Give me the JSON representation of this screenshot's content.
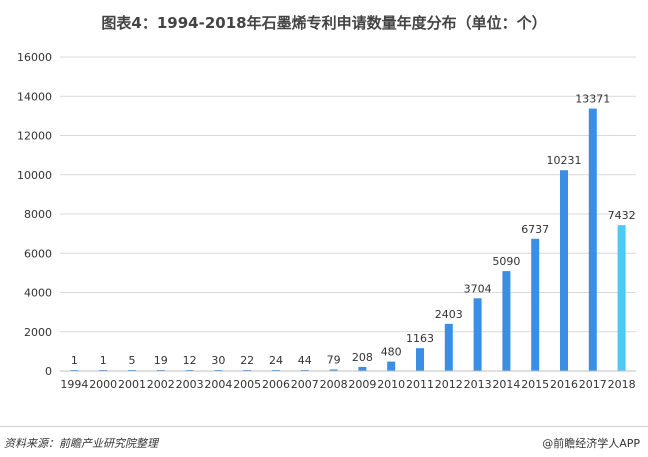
{
  "chart_data": {
    "type": "bar",
    "title": "图表4：1994-2018年石墨烯专利申请数量年度分布（单位：个）",
    "categories": [
      "1994",
      "2000",
      "2001",
      "2002",
      "2003",
      "2004",
      "2005",
      "2006",
      "2007",
      "2008",
      "2009",
      "2010",
      "2011",
      "2012",
      "2013",
      "2014",
      "2015",
      "2016",
      "2017",
      "2018"
    ],
    "values": [
      1,
      1,
      5,
      19,
      12,
      30,
      22,
      24,
      44,
      79,
      208,
      480,
      1163,
      2403,
      3704,
      5090,
      6737,
      10231,
      13371,
      7432
    ],
    "ylim": [
      0,
      16000
    ],
    "yticks": [
      0,
      2000,
      4000,
      6000,
      8000,
      10000,
      12000,
      14000,
      16000
    ],
    "grid": true,
    "colors": {
      "bar": "#3a8ee6",
      "highlight_bar": "#4cc9f5",
      "highlight_index": 19,
      "grid": "#d9d9d9",
      "text": "#333333"
    }
  },
  "footer": {
    "source": "资料来源：前瞻产业研究院整理",
    "brand": "@前瞻经济学人APP"
  }
}
